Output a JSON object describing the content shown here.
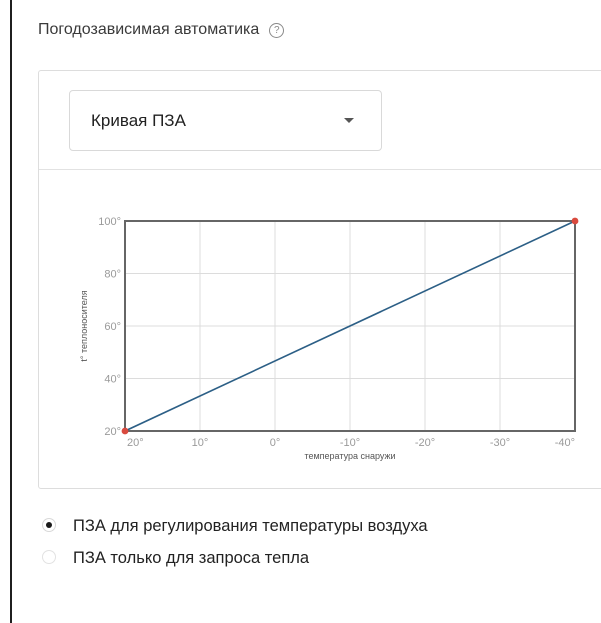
{
  "section": {
    "title": "Погодозависимая автоматика",
    "help_icon": "question-circle-icon"
  },
  "curve_select": {
    "value": "Кривая ПЗА",
    "icon": "caret-down-icon"
  },
  "chart_data": {
    "type": "line",
    "title": "",
    "xlabel": "температура снаружи",
    "ylabel": "t° теплоносителя",
    "x_ticks": [
      "20°",
      "10°",
      "0°",
      "-10°",
      "-20°",
      "-30°",
      "-40°"
    ],
    "y_ticks": [
      "20°",
      "40°",
      "60°",
      "80°",
      "100°"
    ],
    "xlim": [
      20,
      -40
    ],
    "ylim": [
      20,
      100
    ],
    "grid": true,
    "series": [
      {
        "x": [
          20,
          -40
        ],
        "y": [
          20,
          100
        ],
        "color": "#2c5f86",
        "endpoint_color": "#d94a3e"
      }
    ]
  },
  "mode_options": [
    {
      "label": "ПЗА для регулирования температуры воздуха",
      "selected": true
    },
    {
      "label": "ПЗА только для запроса тепла",
      "selected": false
    }
  ]
}
